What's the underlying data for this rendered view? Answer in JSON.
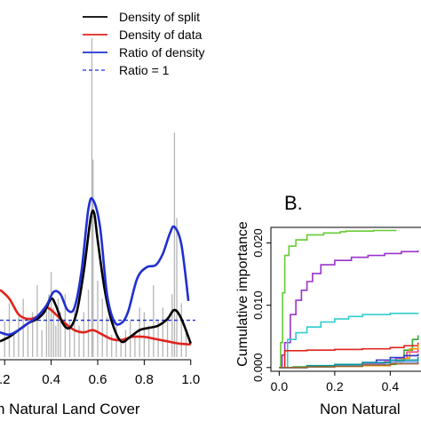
{
  "panel_b_label": "B.",
  "chart_data": [
    {
      "type": "line",
      "panel": "A",
      "xlabel": "n Natural Land Cover",
      "x_ticks": [
        ".2",
        "0.4",
        "0.6",
        "0.8",
        "1.0"
      ],
      "x_tick_values": [
        0.2,
        0.4,
        0.6,
        0.8,
        1.0
      ],
      "xlim": [
        0.18,
        1.02
      ],
      "ylim": [
        0,
        7.4
      ],
      "legend": {
        "placement": "top-right",
        "entries": [
          {
            "label": "Density of split",
            "color": "#000000",
            "style": "solid"
          },
          {
            "label": "Density of data",
            "color": "#e0241b",
            "style": "solid"
          },
          {
            "label": "Ratio of density",
            "color": "#1f2fd1",
            "style": "solid"
          },
          {
            "label": "Ratio = 1",
            "color": "#1f2fd1",
            "style": "dashed"
          }
        ]
      },
      "reference_line_y": 0.82,
      "split_histogram": {
        "color": "#b5b5b5",
        "x": [
          0.2,
          0.22,
          0.24,
          0.26,
          0.28,
          0.3,
          0.32,
          0.34,
          0.36,
          0.38,
          0.39,
          0.4,
          0.41,
          0.42,
          0.43,
          0.44,
          0.46,
          0.48,
          0.5,
          0.52,
          0.54,
          0.56,
          0.575,
          0.58,
          0.6,
          0.62,
          0.64,
          0.66,
          0.68,
          0.7,
          0.72,
          0.74,
          0.76,
          0.78,
          0.8,
          0.82,
          0.84,
          0.86,
          0.88,
          0.9,
          0.92,
          0.93,
          0.94,
          0.96,
          0.98
        ],
        "heights": [
          0.8,
          1.2,
          0.5,
          0.9,
          1.3,
          0.7,
          1.0,
          1.6,
          0.6,
          1.2,
          1.4,
          1.9,
          1.1,
          0.7,
          1.3,
          1.0,
          1.4,
          0.8,
          1.1,
          0.7,
          1.0,
          1.5,
          7.1,
          4.4,
          1.7,
          1.3,
          0.9,
          0.5,
          0.8,
          0.4,
          0.6,
          0.8,
          0.5,
          1.1,
          1.0,
          0.7,
          1.6,
          0.8,
          1.1,
          0.9,
          1.4,
          5.0,
          3.1,
          1.2,
          0.6
        ]
      },
      "series": [
        {
          "name": "Density of split",
          "color": "#000000",
          "x": [
            0.18,
            0.22,
            0.26,
            0.3,
            0.34,
            0.37,
            0.4,
            0.42,
            0.45,
            0.48,
            0.51,
            0.54,
            0.57,
            0.585,
            0.6,
            0.63,
            0.66,
            0.7,
            0.74,
            0.78,
            0.82,
            0.86,
            0.9,
            0.93,
            0.96,
            1.0
          ],
          "y": [
            0.35,
            0.45,
            0.6,
            0.75,
            0.85,
            1.0,
            1.3,
            1.15,
            0.75,
            0.65,
            1.0,
            1.9,
            3.1,
            3.2,
            2.6,
            1.5,
            0.8,
            0.35,
            0.45,
            0.6,
            0.65,
            0.7,
            0.85,
            1.05,
            0.85,
            0.3
          ]
        },
        {
          "name": "Density of data",
          "color": "#e0241b",
          "x": [
            0.18,
            0.22,
            0.26,
            0.3,
            0.34,
            0.38,
            0.42,
            0.46,
            0.5,
            0.54,
            0.58,
            0.62,
            0.66,
            0.7,
            0.75,
            0.8,
            0.85,
            0.9,
            0.95,
            1.0
          ],
          "y": [
            1.5,
            1.3,
            0.95,
            0.85,
            0.9,
            1.1,
            0.95,
            0.75,
            0.6,
            0.55,
            0.6,
            0.5,
            0.4,
            0.38,
            0.45,
            0.45,
            0.4,
            0.35,
            0.3,
            0.28
          ]
        },
        {
          "name": "Ratio of density",
          "color": "#1f2fd1",
          "x": [
            0.18,
            0.22,
            0.26,
            0.3,
            0.34,
            0.38,
            0.41,
            0.44,
            0.47,
            0.5,
            0.53,
            0.56,
            0.58,
            0.61,
            0.64,
            0.67,
            0.7,
            0.73,
            0.77,
            0.81,
            0.85,
            0.88,
            0.91,
            0.93,
            0.96,
            0.99
          ],
          "y": [
            0.55,
            0.5,
            0.6,
            0.75,
            0.9,
            1.15,
            1.45,
            1.4,
            1.05,
            1.1,
            1.9,
            3.3,
            3.5,
            2.9,
            1.4,
            0.8,
            0.75,
            1.0,
            1.75,
            2.0,
            2.05,
            2.3,
            2.75,
            2.9,
            2.5,
            1.25
          ]
        }
      ]
    },
    {
      "type": "line",
      "panel": "B",
      "ylabel": "Cumulative importance",
      "xlabel": "Non Natural",
      "y_ticks": [
        "0.000",
        "0.010",
        "0.020"
      ],
      "y_tick_values": [
        0.0,
        0.01,
        0.02
      ],
      "x_ticks": [
        "0.0",
        "0.2",
        "0.4"
      ],
      "x_tick_values": [
        0.0,
        0.2,
        0.4
      ],
      "xlim": [
        -0.03,
        0.53
      ],
      "ylim": [
        -0.0006,
        0.0225
      ],
      "series": [
        {
          "color": "#66cc33",
          "x": [
            0.0,
            0.005,
            0.012,
            0.02,
            0.035,
            0.06,
            0.1,
            0.16,
            0.22,
            0.24,
            0.28,
            0.34,
            0.4,
            0.42
          ],
          "y": [
            0.0,
            0.004,
            0.012,
            0.018,
            0.0195,
            0.0205,
            0.0213,
            0.0216,
            0.0218,
            0.0219,
            0.0219,
            0.022,
            0.022,
            0.0221
          ]
        },
        {
          "color": "#9933cc",
          "x": [
            0.0,
            0.01,
            0.02,
            0.04,
            0.06,
            0.08,
            0.1,
            0.12,
            0.15,
            0.2,
            0.26,
            0.32,
            0.38,
            0.44,
            0.5
          ],
          "y": [
            0.0,
            0.002,
            0.004,
            0.0085,
            0.0108,
            0.0124,
            0.0138,
            0.0151,
            0.0165,
            0.0172,
            0.0177,
            0.018,
            0.0183,
            0.0186,
            0.0188
          ]
        },
        {
          "color": "#33cccc",
          "x": [
            0.0,
            0.03,
            0.06,
            0.1,
            0.15,
            0.2,
            0.25,
            0.3,
            0.4,
            0.5
          ],
          "y": [
            0.0,
            0.0045,
            0.0056,
            0.0065,
            0.0073,
            0.0078,
            0.0082,
            0.0085,
            0.0087,
            0.0088
          ]
        },
        {
          "color": "#33aa33",
          "x": [
            0.0,
            0.05,
            0.1,
            0.2,
            0.3,
            0.38,
            0.42,
            0.45,
            0.48,
            0.5
          ],
          "y": [
            0.0,
            0.0001,
            0.0002,
            0.0003,
            0.0004,
            0.0005,
            0.0011,
            0.0028,
            0.0045,
            0.0052
          ]
        },
        {
          "color": "#ff3399",
          "x": [
            0.0,
            0.1,
            0.2,
            0.3,
            0.38,
            0.42,
            0.46,
            0.5
          ],
          "y": [
            0.0,
            0.0002,
            0.0004,
            0.0006,
            0.0009,
            0.0015,
            0.0025,
            0.0033
          ]
        },
        {
          "color": "#e0241b",
          "x": [
            0.0,
            0.02,
            0.1,
            0.2,
            0.3,
            0.4,
            0.45,
            0.5
          ],
          "y": [
            0.0,
            0.0027,
            0.0028,
            0.0029,
            0.003,
            0.0032,
            0.0035,
            0.004
          ]
        },
        {
          "color": "#ff9900",
          "x": [
            0.0,
            0.1,
            0.2,
            0.3,
            0.4,
            0.44,
            0.47,
            0.5
          ],
          "y": [
            0.0,
            0.0001,
            0.0002,
            0.0003,
            0.0006,
            0.0015,
            0.003,
            0.0037
          ]
        },
        {
          "color": "#3333cc",
          "x": [
            0.0,
            0.1,
            0.2,
            0.3,
            0.35,
            0.4,
            0.45,
            0.5
          ],
          "y": [
            0.0,
            0.0002,
            0.0004,
            0.0008,
            0.0012,
            0.0016,
            0.0019,
            0.0022
          ]
        },
        {
          "color": "#6699ff",
          "x": [
            0.0,
            0.1,
            0.2,
            0.3,
            0.4,
            0.5
          ],
          "y": [
            0.0,
            0.0001,
            0.0003,
            0.0005,
            0.0009,
            0.0013
          ]
        },
        {
          "color": "#009999",
          "x": [
            0.0,
            0.1,
            0.2,
            0.3,
            0.4,
            0.5
          ],
          "y": [
            0.0,
            0.0003,
            0.0005,
            0.0008,
            0.0012,
            0.0017
          ]
        },
        {
          "color": "#996633",
          "x": [
            0.0,
            0.1,
            0.2,
            0.3,
            0.4,
            0.5
          ],
          "y": [
            0.0,
            0.0001,
            0.0002,
            0.0004,
            0.0006,
            0.0009
          ]
        }
      ]
    }
  ]
}
